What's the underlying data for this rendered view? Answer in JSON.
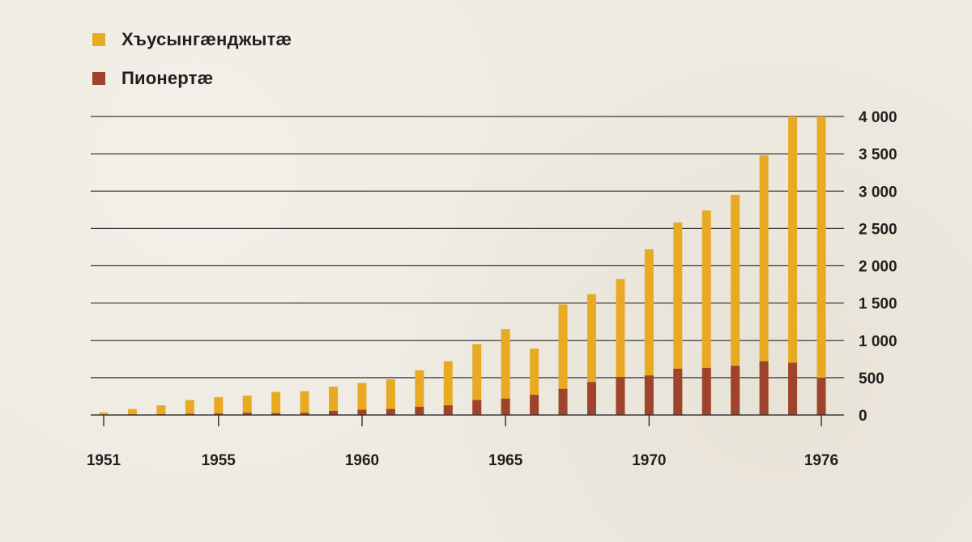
{
  "chart_data": {
    "type": "bar",
    "stacked": false,
    "overlay": true,
    "x": [
      1951,
      1952,
      1953,
      1954,
      1955,
      1956,
      1957,
      1958,
      1959,
      1960,
      1961,
      1962,
      1963,
      1964,
      1965,
      1966,
      1967,
      1968,
      1969,
      1970,
      1971,
      1972,
      1973,
      1974,
      1975,
      1976
    ],
    "series": [
      {
        "name": "Хъусынгæнджытæ",
        "color": "#e8aa22",
        "values": [
          35,
          80,
          130,
          200,
          240,
          260,
          310,
          320,
          380,
          430,
          480,
          600,
          720,
          950,
          1150,
          890,
          1480,
          1620,
          1820,
          2220,
          2580,
          2740,
          2950,
          3480,
          4000,
          4000
        ]
      },
      {
        "name": "Пионертæ",
        "color": "#a0432d",
        "values": [
          5,
          8,
          10,
          15,
          20,
          30,
          25,
          30,
          55,
          70,
          80,
          110,
          130,
          200,
          220,
          270,
          350,
          440,
          510,
          530,
          620,
          630,
          660,
          720,
          700,
          500
        ]
      }
    ],
    "x_tick_labels": [
      "1951",
      "1955",
      "1960",
      "1965",
      "1970",
      "1976"
    ],
    "y_tick_labels": [
      "0",
      "500",
      "1 000",
      "1 500",
      "2 000",
      "2 500",
      "3 000",
      "3 500",
      "4 000"
    ],
    "ylim": [
      0,
      4000
    ],
    "grid": true,
    "y_axis_side": "right",
    "legend": "top-left"
  }
}
